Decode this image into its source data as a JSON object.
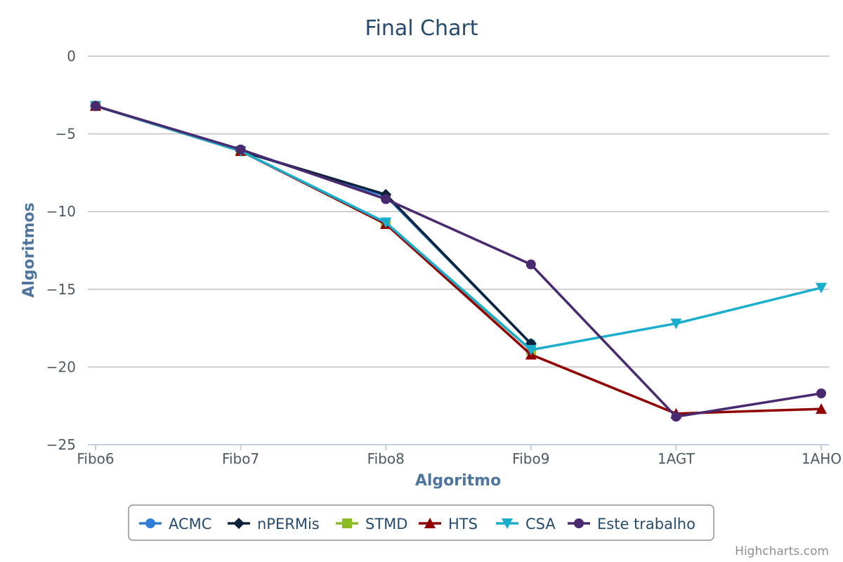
{
  "chart_data": {
    "type": "line",
    "title": "Final Chart",
    "xlabel": "Algoritmo",
    "ylabel": "Algoritmos",
    "categories": [
      "Fibo6",
      "Fibo7",
      "Fibo8",
      "Fibo9",
      "1AGT",
      "1AHO"
    ],
    "ylim": [
      -25,
      0
    ],
    "yticks": [
      0,
      -5,
      -10,
      -15,
      -20,
      -25
    ],
    "grid": true,
    "legend_position": "bottom-center",
    "series": [
      {
        "name": "ACMC",
        "color": "#2f7ed8",
        "marker": "circle",
        "values": [
          -3.2,
          -6.1,
          -9.0,
          -18.5,
          null,
          null
        ]
      },
      {
        "name": "nPERMis",
        "color": "#0d233a",
        "marker": "diamond",
        "values": [
          -3.2,
          -6.1,
          -8.9,
          -18.5,
          null,
          null
        ]
      },
      {
        "name": "STMD",
        "color": "#8bbc21",
        "marker": "square",
        "values": [
          -3.2,
          -6.1,
          -10.8,
          -18.9,
          null,
          null
        ]
      },
      {
        "name": "HTS",
        "color": "#910000",
        "marker": "triangle",
        "values": [
          -3.2,
          -6.1,
          -10.8,
          -19.2,
          -23.0,
          -22.7
        ]
      },
      {
        "name": "CSA",
        "color": "#1aadce",
        "marker": "triangle-down",
        "values": [
          -3.2,
          -6.1,
          -10.7,
          -18.9,
          -17.2,
          -14.9
        ]
      },
      {
        "name": "Este trabalho",
        "color": "#492970",
        "marker": "circle",
        "values": [
          -3.2,
          -6.0,
          -9.2,
          -13.4,
          -23.2,
          -21.7
        ]
      }
    ]
  },
  "credits": "Highcharts.com"
}
